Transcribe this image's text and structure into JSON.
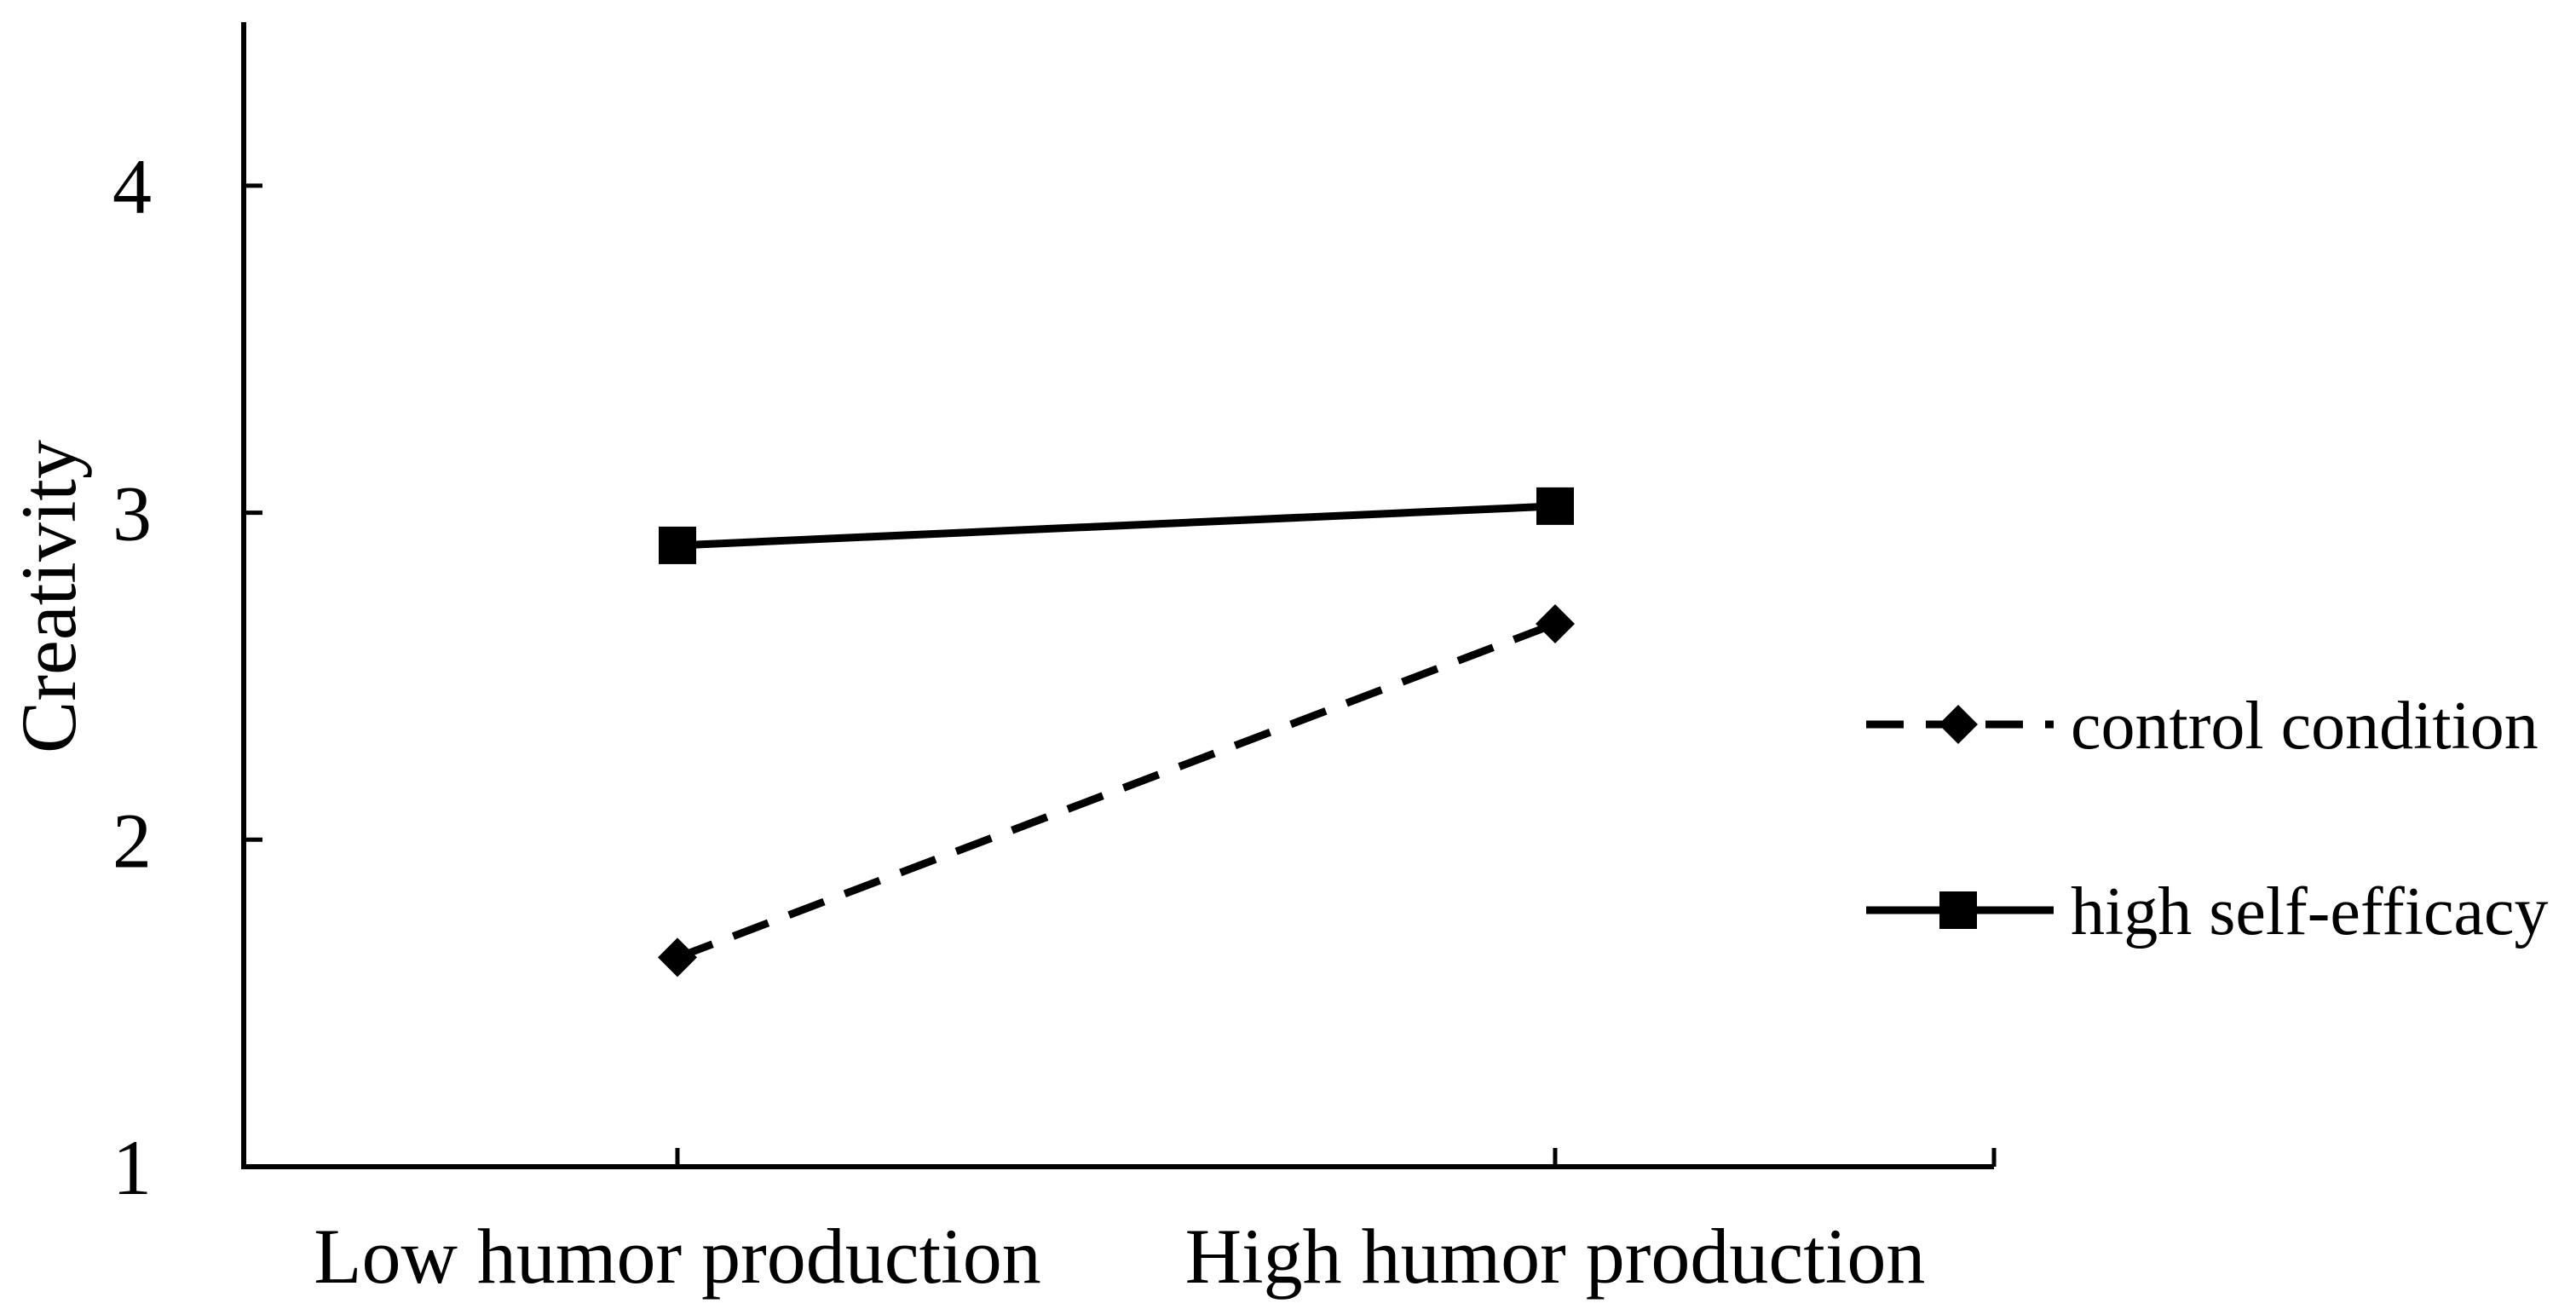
{
  "chart_data": {
    "type": "line",
    "title": "",
    "xlabel": "",
    "ylabel": "Creativity",
    "categories": [
      "Low humor production",
      "High humor production"
    ],
    "ylim": [
      1,
      4.5
    ],
    "yticks": [
      1,
      2,
      3,
      4
    ],
    "grid": false,
    "legend_position": "right",
    "series": [
      {
        "name": "control condition",
        "values": [
          1.64,
          2.66
        ],
        "line_style": "dashed",
        "marker": "diamond",
        "color": "#000000"
      },
      {
        "name": "high self-efficacy",
        "values": [
          2.9,
          3.02
        ],
        "line_style": "solid",
        "marker": "square",
        "color": "#000000"
      }
    ]
  }
}
